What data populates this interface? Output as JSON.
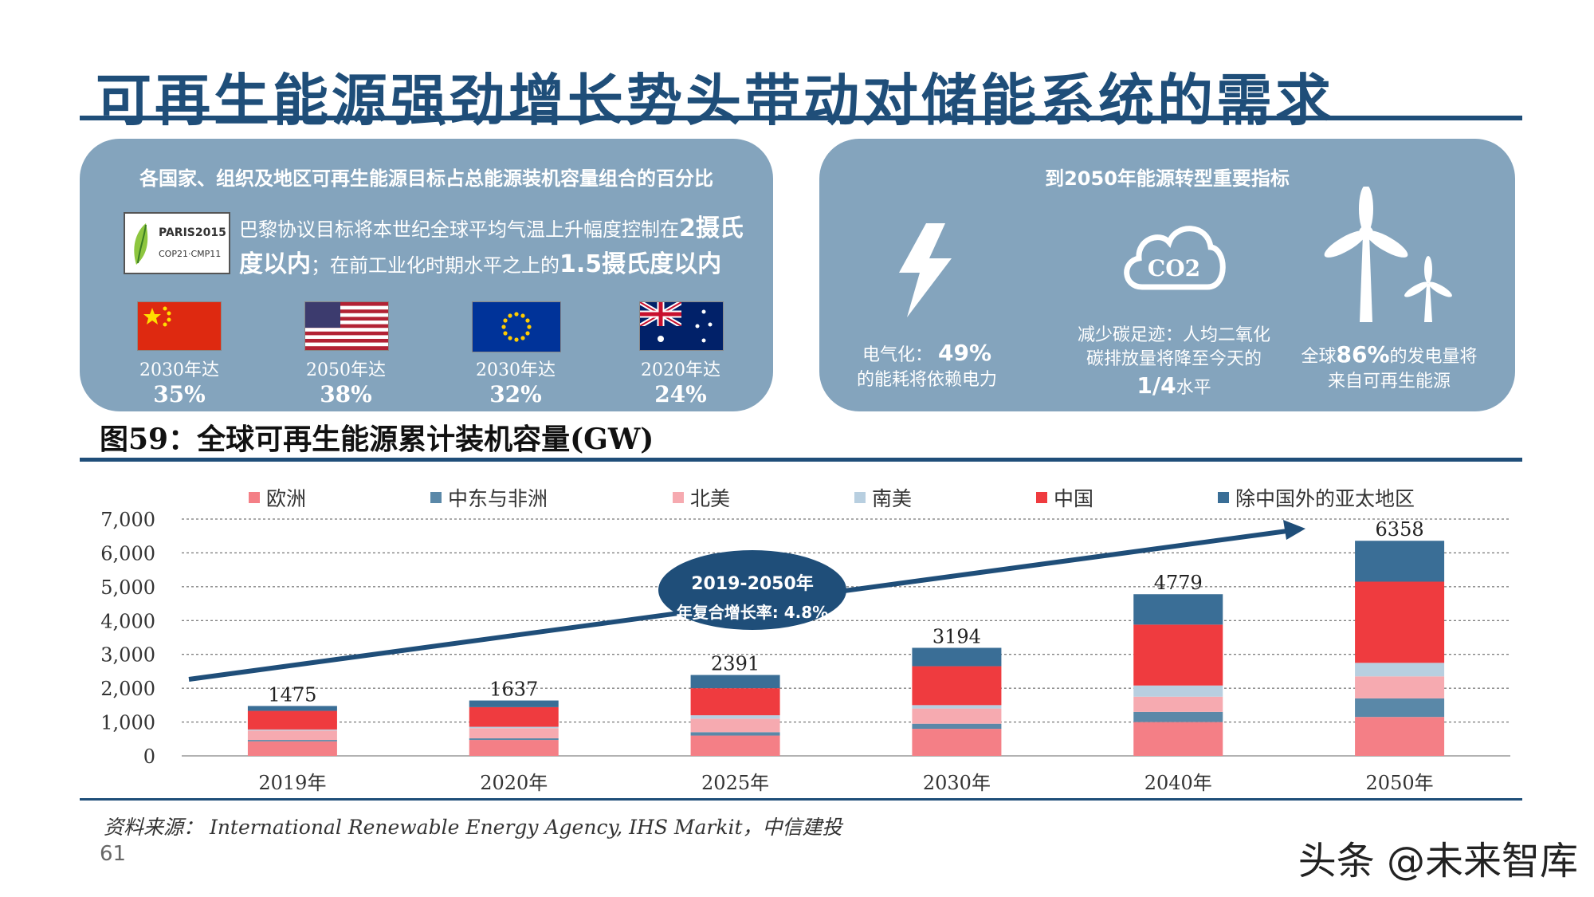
{
  "title": "可再生能源强劲增长势头带动对储能系统的需求",
  "left_panel": {
    "heading": "各国家、组织及地区可再生能源目标占总能源装机容量组合的百分比",
    "paris_logo": {
      "line1": "PARIS2015",
      "line2": "COP21·CMP11"
    },
    "paris_text_1": "巴黎协议目标将本世纪全球平均气温上升幅度控制在",
    "paris_text_2": "2摄氏度以内",
    "paris_text_3": "；在前工业化时期水平之上的",
    "paris_text_4": "1.5摄氏度以内",
    "flags": [
      {
        "icon": "china-flag-icon",
        "year": "2030年达",
        "pct": "35%"
      },
      {
        "icon": "usa-flag-icon",
        "year": "2050年达",
        "pct": "38%"
      },
      {
        "icon": "eu-flag-icon",
        "year": "2030年达",
        "pct": "32%"
      },
      {
        "icon": "australia-flag-icon",
        "year": "2020年达",
        "pct": "24%"
      }
    ]
  },
  "right_panel": {
    "heading": "到2050年能源转型重要指标",
    "indicators": [
      {
        "icon": "lightning-icon",
        "line1_a": "电气化：",
        "line1_b": "49%",
        "line2": "的能耗将依赖电力"
      },
      {
        "icon": "co2-cloud-icon",
        "icon_text": "CO2",
        "line1": "减少碳足迹：人均二氧化",
        "line2": "碳排放量将降至今天的",
        "line3_a": "1/4",
        "line3_b": "水平"
      },
      {
        "icon": "wind-turbine-icon",
        "line1_a": "全球",
        "line1_b": "86%",
        "line1_c": "的发电量将",
        "line2": "来自可再生能源"
      }
    ]
  },
  "figure_caption": "图59：全球可再生能源累计装机容量(GW)",
  "colors": {
    "欧洲": "#f47f86",
    "中东与非洲": "#5a88a8",
    "北美": "#f6aab0",
    "南美": "#b8cfe0",
    "中国": "#ef3b3f",
    "除中国外的亚太地区": "#3a6e96",
    "title": "#1f4e79",
    "panel": "#84a4bd",
    "arrow": "#1f4e79"
  },
  "chart_data": {
    "type": "bar",
    "stacked": true,
    "categories": [
      "2019年",
      "2020年",
      "2025年",
      "2030年",
      "2040年",
      "2050年"
    ],
    "series": [
      {
        "name": "欧洲",
        "values": [
          430,
          470,
          600,
          800,
          1000,
          1150
        ]
      },
      {
        "name": "中东与非洲",
        "values": [
          40,
          50,
          100,
          150,
          300,
          550
        ]
      },
      {
        "name": "北美",
        "values": [
          280,
          300,
          400,
          450,
          450,
          650
        ]
      },
      {
        "name": "南美",
        "values": [
          30,
          40,
          100,
          100,
          330,
          400
        ]
      },
      {
        "name": "中国",
        "values": [
          550,
          580,
          800,
          1150,
          1800,
          2400
        ]
      },
      {
        "name": "除中国外的亚太地区",
        "values": [
          145,
          197,
          391,
          544,
          899,
          1208
        ]
      }
    ],
    "totals": [
      1475,
      1637,
      2391,
      3194,
      4779,
      6358
    ],
    "total_labels": [
      "1475",
      "1637",
      "2391",
      "3194",
      "4779",
      "6358"
    ],
    "y_ticks": [
      "7,000",
      "6,000",
      "5,000",
      "4,000",
      "3,000",
      "2,000",
      "1,000",
      "0"
    ],
    "ylim": [
      0,
      7000
    ],
    "grid": true,
    "legend": "top",
    "annotation": {
      "line1": "2019-2050年",
      "line2": "年复合增长率: 4.8%"
    }
  },
  "source": "资料来源：  International Renewable Energy Agency, IHS Markit，中信建投",
  "page_number": "61",
  "watermark": "头条 @未来智库"
}
